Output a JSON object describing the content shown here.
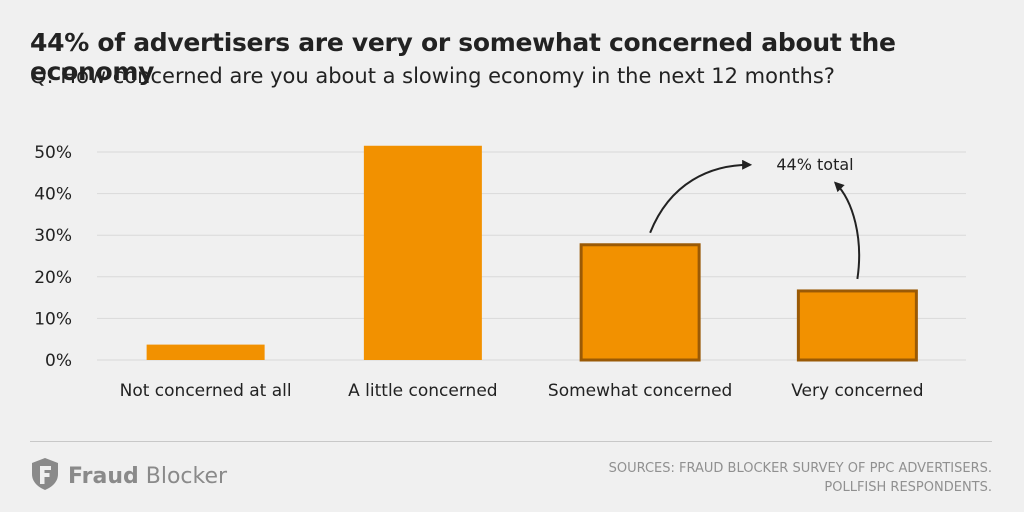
{
  "header": {
    "title": "44% of advertisers are very or somewhat concerned about the economy",
    "subtitle": "Q: How concerned are you about a slowing economy in the next 12 months?"
  },
  "chart_data": {
    "type": "bar",
    "categories": [
      "Not concerned at all",
      "A little concerned",
      "Somewhat concerned",
      "Very concerned"
    ],
    "values": [
      3.7,
      51.5,
      27.7,
      16.6
    ],
    "highlighted": [
      false,
      false,
      true,
      true
    ],
    "ylim": [
      0,
      50
    ],
    "yticks": [
      "0%",
      "10%",
      "20%",
      "30%",
      "40%",
      "50%"
    ],
    "grid": true,
    "annotation": "44% total",
    "colors": {
      "bar": "#f29100",
      "bar_outline": "#9a5a06",
      "grid": "#d9d9d9",
      "text": "#222222"
    }
  },
  "footer": {
    "brand_bold": "Fraud",
    "brand_regular": "Blocker",
    "logo_icon": "shield-f-icon",
    "sources_line1": "SOURCES: FRAUD BLOCKER SURVEY OF PPC ADVERTISERS.",
    "sources_line2": "POLLFISH RESPONDENTS."
  }
}
